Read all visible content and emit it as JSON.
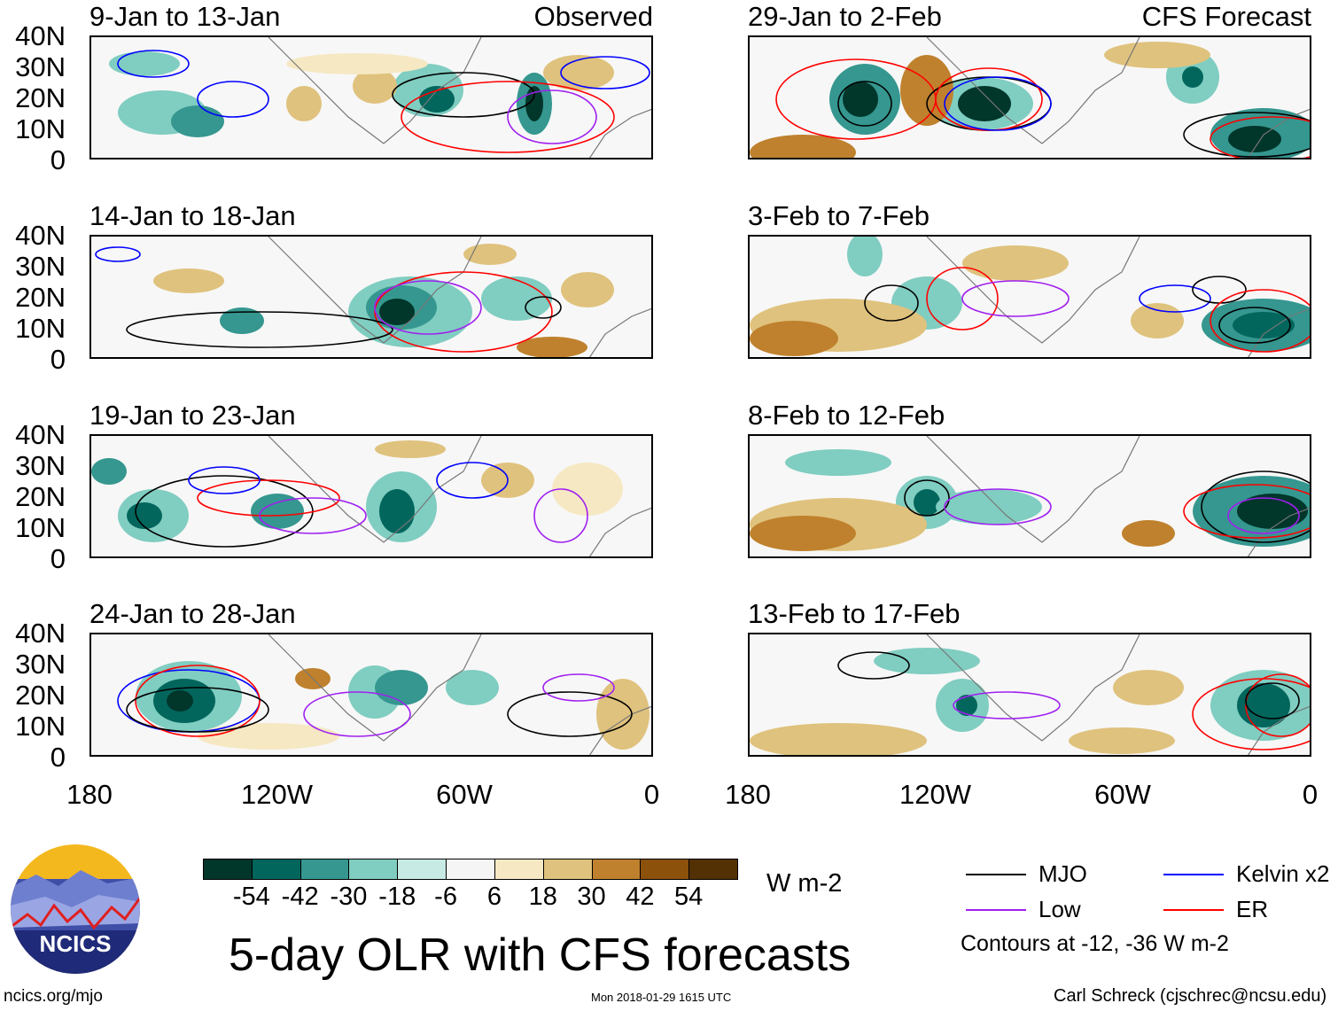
{
  "panels_left": [
    {
      "title": "9-Jan to 13-Jan",
      "tag": "Observed"
    },
    {
      "title": "14-Jan to 18-Jan",
      "tag": ""
    },
    {
      "title": "19-Jan to 23-Jan",
      "tag": ""
    },
    {
      "title": "24-Jan to 28-Jan",
      "tag": ""
    }
  ],
  "panels_right": [
    {
      "title": "29-Jan to 2-Feb",
      "tag": "CFS Forecast"
    },
    {
      "title": "3-Feb to 7-Feb",
      "tag": ""
    },
    {
      "title": "8-Feb to 12-Feb",
      "tag": ""
    },
    {
      "title": "13-Feb to 17-Feb",
      "tag": ""
    }
  ],
  "y_ticks": [
    "40N",
    "30N",
    "20N",
    "10N",
    "0"
  ],
  "x_ticks": [
    "180",
    "120W",
    "60W",
    "0"
  ],
  "colorbar": {
    "colors": [
      "#01362b",
      "#02665d",
      "#35978f",
      "#80cdc1",
      "#c7eae5",
      "#f5f5f5",
      "#f6e8c3",
      "#dfc27d",
      "#bf812d",
      "#8c510a",
      "#543005"
    ],
    "labels": [
      "-54",
      "-42",
      "-30",
      "-18",
      "-6",
      "6",
      "18",
      "30",
      "42",
      "54"
    ],
    "units": "W m-2"
  },
  "title": "5-day OLR with CFS forecasts",
  "timestamp": "Mon 2018-01-29 1615 UTC",
  "website": "ncics.org/mjo",
  "logo_text": "NCICS",
  "credit": "Carl Schreck (cjschrec@ncsu.edu)",
  "legend": {
    "items": [
      {
        "label": "MJO",
        "color": "#000000"
      },
      {
        "label": "Kelvin x2",
        "color": "#0000ff"
      },
      {
        "label": "Low",
        "color": "#a020f0"
      },
      {
        "label": "ER",
        "color": "#ff0000"
      }
    ],
    "note": "Contours at -12, -36 W m-2"
  }
}
